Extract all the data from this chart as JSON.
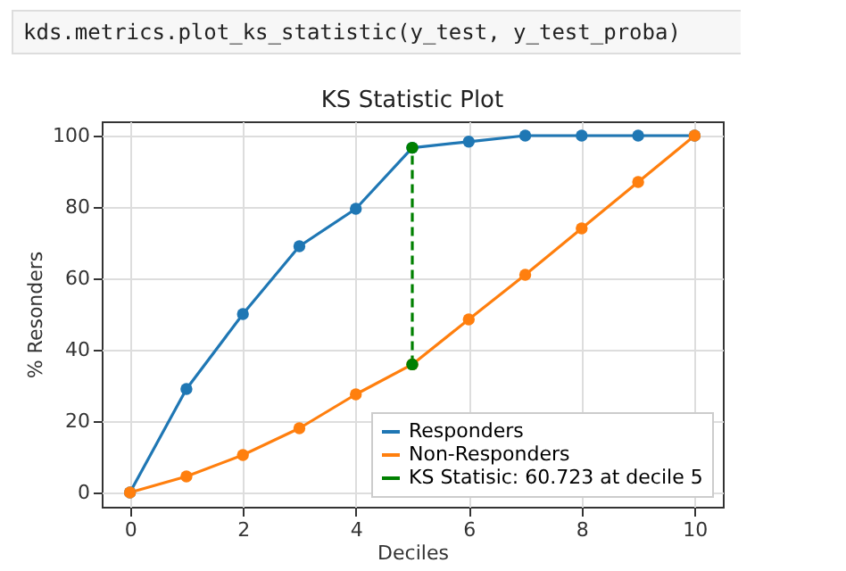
{
  "chart_data": {
    "type": "line",
    "title": "KS Statistic Plot",
    "xlabel": "Deciles",
    "ylabel": "% Resonders",
    "annotations": [
      "kds.metrics.plot_ks_statistic(y_test, y_test_proba)"
    ],
    "x": [
      0,
      1,
      2,
      3,
      4,
      5,
      6,
      7,
      8,
      9,
      10
    ],
    "series": [
      {
        "name": "Responders",
        "color": "#1f77b4",
        "values": [
          0,
          29,
          50,
          69,
          79.5,
          96.6,
          98.3,
          100,
          100,
          100,
          100
        ]
      },
      {
        "name": "Non-Responders",
        "color": "#ff7f0e",
        "values": [
          0,
          4.5,
          10.5,
          18,
          27.5,
          35.9,
          48.5,
          61,
          74,
          87,
          100
        ]
      },
      {
        "name": "KS Statisic: 60.723 at decile 5",
        "color": "#008000",
        "x": [
          5,
          5
        ],
        "values": [
          35.9,
          96.6
        ],
        "line_style": "dashed"
      }
    ],
    "xlim": [
      -0.5,
      10.5
    ],
    "ylim": [
      -4,
      104
    ],
    "xticks": [
      0,
      2,
      4,
      6,
      8,
      10
    ],
    "yticks": [
      0,
      20,
      40,
      60,
      80,
      100
    ],
    "grid": true,
    "legend": "bottom right",
    "marker": "circle",
    "line_style": "solid"
  }
}
